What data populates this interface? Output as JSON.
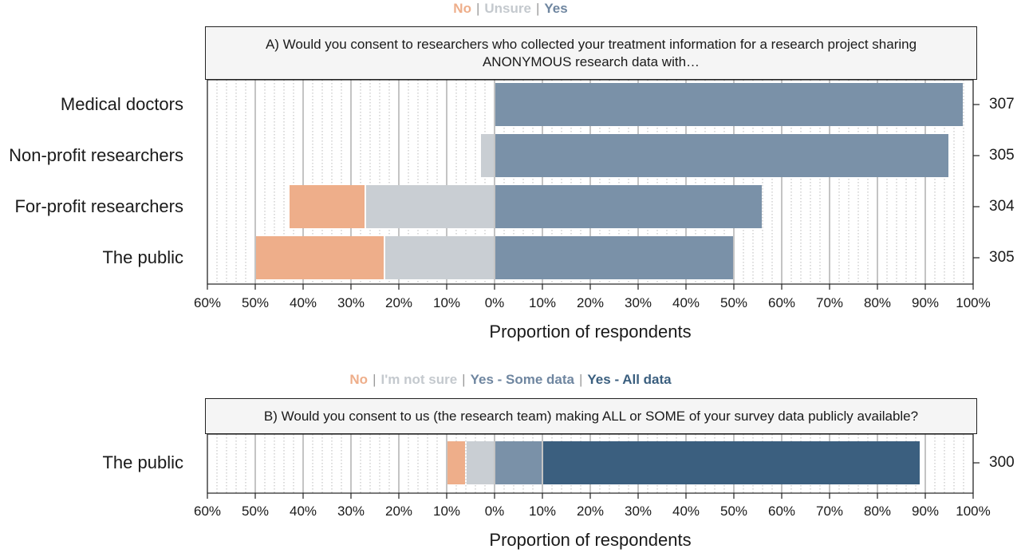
{
  "chart_data": [
    {
      "type": "bar",
      "orientation": "horizontal-diverging",
      "title": "A) Would you consent to researchers who collected your treatment information for a research project sharing ANONYMOUS research data with…",
      "legend": [
        "No",
        "Unsure",
        "Yes"
      ],
      "legend_position": "top-center",
      "categories": [
        "Medical doctors",
        "Non-profit researchers",
        "For-profit researchers",
        "The public"
      ],
      "series": [
        {
          "name": "No",
          "values": [
            0,
            0,
            16,
            27
          ],
          "color": "#eeae8a"
        },
        {
          "name": "Unsure",
          "values": [
            0,
            3,
            27,
            23
          ],
          "color": "#c9ced3"
        },
        {
          "name": "Yes",
          "values": [
            98,
            95,
            56,
            50
          ],
          "color": "#7a91a8"
        }
      ],
      "n": [
        "307",
        "305",
        "304",
        "305"
      ],
      "xlabel": "Proportion of respondents",
      "xlim": [
        -60,
        100
      ],
      "xticks": [
        "60%",
        "50%",
        "40%",
        "30%",
        "20%",
        "10%",
        "0%",
        "10%",
        "20%",
        "30%",
        "40%",
        "50%",
        "60%",
        "70%",
        "80%",
        "90%",
        "100%"
      ],
      "grid": true
    },
    {
      "type": "bar",
      "orientation": "horizontal-diverging",
      "title": "B) Would you consent to us (the research team) making ALL or SOME of your survey data publicly available?",
      "legend": [
        "No",
        "I'm not sure",
        "Yes - Some data",
        "Yes - All data"
      ],
      "legend_position": "top-center",
      "categories": [
        "The public"
      ],
      "series": [
        {
          "name": "No",
          "values": [
            4
          ],
          "color": "#eeae8a"
        },
        {
          "name": "I'm not sure",
          "values": [
            6
          ],
          "color": "#c9ced3"
        },
        {
          "name": "Yes - Some data",
          "values": [
            10
          ],
          "color": "#7a91a8"
        },
        {
          "name": "Yes - All data",
          "values": [
            79
          ],
          "color": "#3b5f7f"
        }
      ],
      "n": [
        "300"
      ],
      "xlabel": "Proportion of respondents",
      "xlim": [
        -60,
        100
      ],
      "xticks": [
        "60%",
        "50%",
        "40%",
        "30%",
        "20%",
        "10%",
        "0%",
        "10%",
        "20%",
        "30%",
        "40%",
        "50%",
        "60%",
        "70%",
        "80%",
        "90%",
        "100%"
      ],
      "grid": true
    }
  ]
}
